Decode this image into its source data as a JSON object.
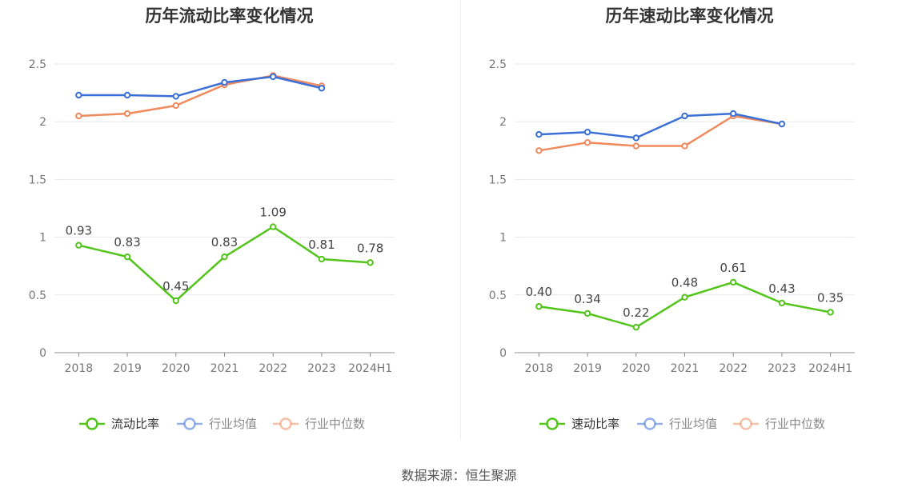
{
  "chart_data": [
    {
      "type": "line",
      "title": "历年流动比率变化情况",
      "categories": [
        "2018",
        "2019",
        "2020",
        "2021",
        "2022",
        "2023",
        "2024H1"
      ],
      "ylim": [
        0,
        2.5
      ],
      "yticks": [
        "0",
        "0.5",
        "1",
        "1.5",
        "2",
        "2.5"
      ],
      "grid": true,
      "legend_position": "bottom",
      "series": [
        {
          "name": "流动比率",
          "color": "#52c41a",
          "values": [
            0.93,
            0.83,
            0.45,
            0.83,
            1.09,
            0.81,
            0.78
          ],
          "labels": [
            "0.93",
            "0.83",
            "0.45",
            "0.83",
            "1.09",
            "0.81",
            "0.78"
          ]
        },
        {
          "name": "行业均值",
          "color": "#3a6fd8",
          "values": [
            2.23,
            2.23,
            2.22,
            2.34,
            2.39,
            2.29,
            null
          ]
        },
        {
          "name": "行业中位数",
          "color": "#f08a5d",
          "values": [
            2.05,
            2.07,
            2.14,
            2.32,
            2.4,
            2.31,
            null
          ]
        }
      ]
    },
    {
      "type": "line",
      "title": "历年速动比率变化情况",
      "categories": [
        "2018",
        "2019",
        "2020",
        "2021",
        "2022",
        "2023",
        "2024H1"
      ],
      "ylim": [
        0,
        2.5
      ],
      "yticks": [
        "0",
        "0.5",
        "1",
        "1.5",
        "2",
        "2.5"
      ],
      "grid": true,
      "legend_position": "bottom",
      "series": [
        {
          "name": "速动比率",
          "color": "#52c41a",
          "values": [
            0.4,
            0.34,
            0.22,
            0.48,
            0.61,
            0.43,
            0.35
          ],
          "labels": [
            "0.40",
            "0.34",
            "0.22",
            "0.48",
            "0.61",
            "0.43",
            "0.35"
          ]
        },
        {
          "name": "行业均值",
          "color": "#3a6fd8",
          "values": [
            1.89,
            1.91,
            1.86,
            2.05,
            2.07,
            1.98,
            null
          ]
        },
        {
          "name": "行业中位数",
          "color": "#f08a5d",
          "values": [
            1.75,
            1.82,
            1.79,
            1.79,
            2.05,
            1.98,
            null
          ]
        }
      ]
    }
  ],
  "source": "数据来源：恒生聚源"
}
